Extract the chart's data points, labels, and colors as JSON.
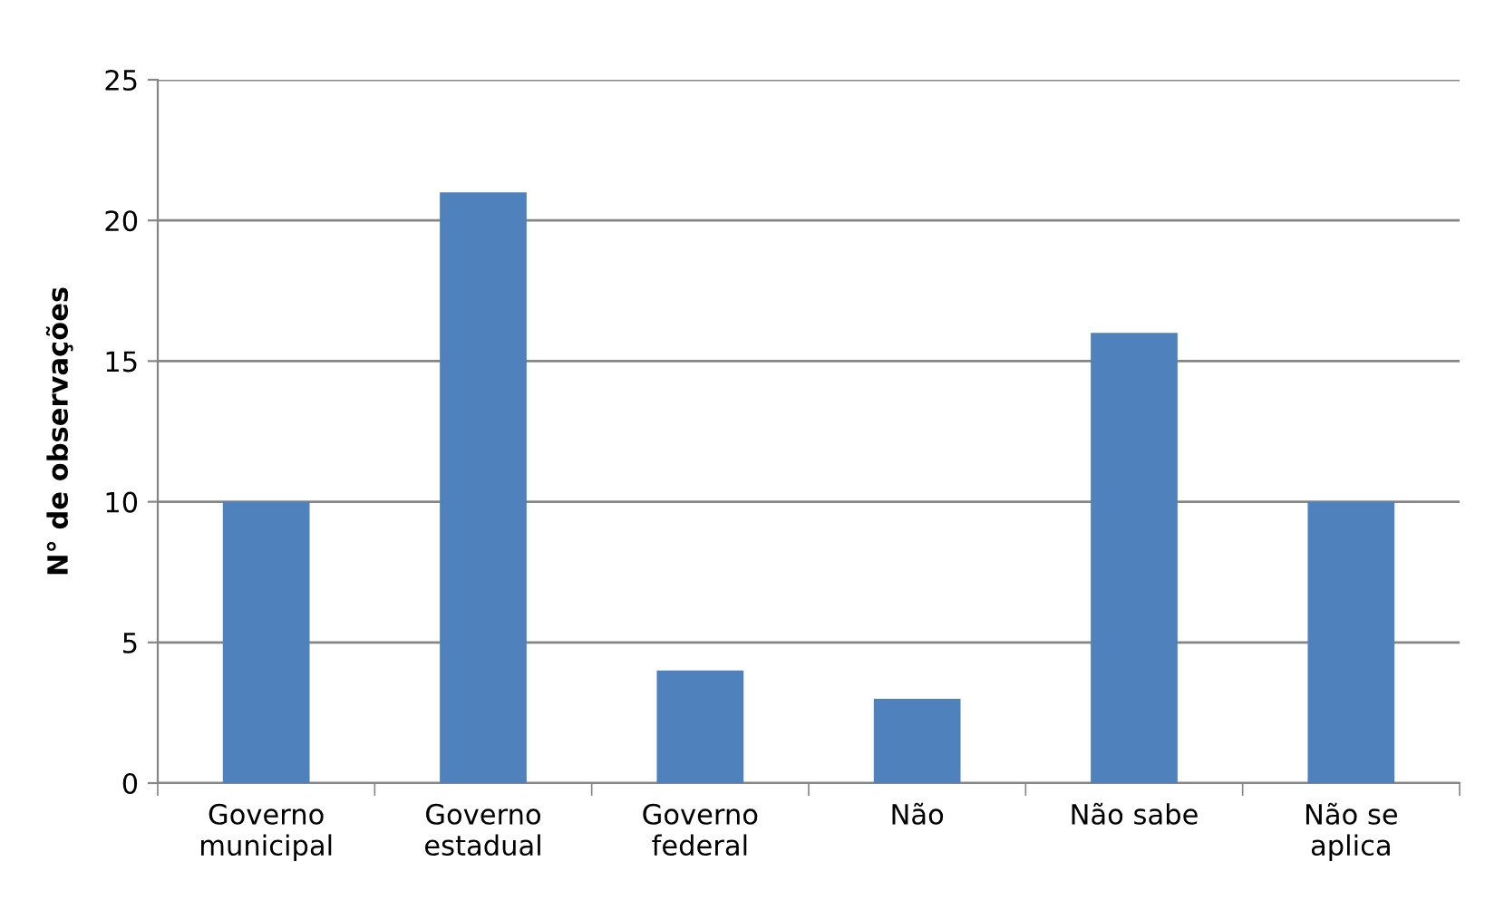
{
  "chart_data": {
    "type": "bar",
    "categories": [
      "Governo\nmunicipal",
      "Governo\nestadual",
      "Governo\nfederal",
      "Não",
      "Não sabe",
      "Não se\naplica"
    ],
    "values": [
      10,
      21,
      4,
      3,
      16,
      10
    ],
    "color": "#4f81bd",
    "ylabel": "N° de observações",
    "ylim": [
      0,
      25
    ],
    "yticks": [
      0,
      5,
      10,
      15,
      20,
      25
    ],
    "grid": "y",
    "legend": false
  }
}
